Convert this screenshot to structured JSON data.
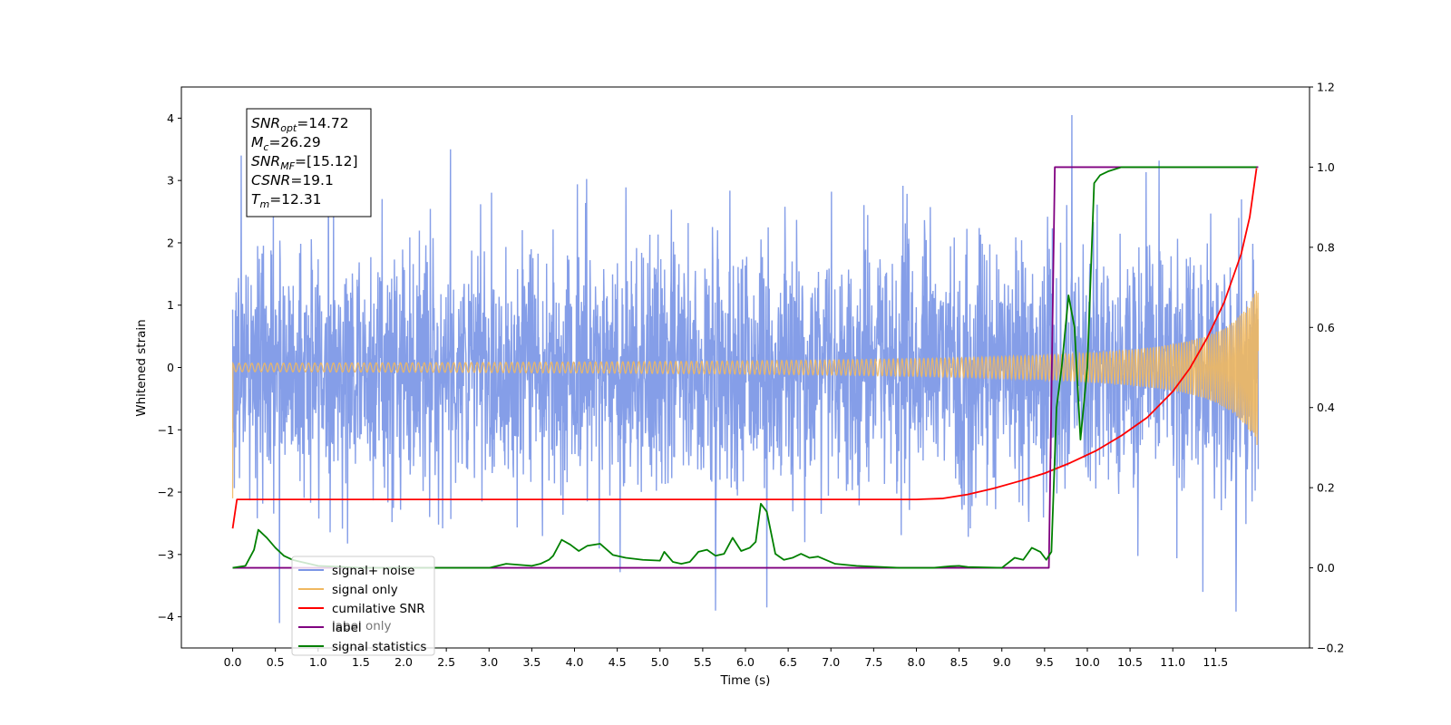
{
  "chart_data": {
    "type": "line",
    "xlabel": "Time (s)",
    "ylabel": "Whitened strain",
    "xlim": [
      -0.6,
      12.6
    ],
    "ylim": [
      -4.5,
      4.5
    ],
    "y2lim": [
      -0.2,
      1.2
    ],
    "x_ticks": [
      0.0,
      0.5,
      1.0,
      1.5,
      2.0,
      2.5,
      3.0,
      3.5,
      4.0,
      4.5,
      5.0,
      5.5,
      6.0,
      6.5,
      7.0,
      7.5,
      8.0,
      8.5,
      9.0,
      9.5,
      10.0,
      10.5,
      11.0,
      11.5
    ],
    "x_tick_labels": [
      "0.0",
      "0.5",
      "1.0",
      "1.5",
      "2.0",
      "2.5",
      "3.0",
      "3.5",
      "4.0",
      "4.5",
      "5.0",
      "5.5",
      "6.0",
      "6.5",
      "7.0",
      "7.5",
      "8.0",
      "8.5",
      "9.0",
      "9.5",
      "10.0",
      "10.5",
      "11.0",
      "11.5"
    ],
    "y_ticks": [
      -4,
      -3,
      -2,
      -1,
      0,
      1,
      2,
      3,
      4
    ],
    "y_tick_labels": [
      "−4",
      "−3",
      "−2",
      "−1",
      "0",
      "1",
      "2",
      "3",
      "4"
    ],
    "y2_ticks": [
      -0.2,
      0.0,
      0.2,
      0.4,
      0.6,
      0.8,
      1.0,
      1.2
    ],
    "y2_tick_labels": [
      "−0.2",
      "0.0",
      "0.2",
      "0.4",
      "0.6",
      "0.8",
      "1.0",
      "1.2"
    ],
    "annotation": {
      "lines": [
        {
          "main": "SNR",
          "sub": "opt",
          "value": "=14.72"
        },
        {
          "main": "M",
          "sub": "c",
          "value": "=26.29"
        },
        {
          "main": "SNR",
          "sub": "MF",
          "value": "=[15.12]"
        },
        {
          "main": "CSNR",
          "sub": "",
          "value": "=19.1"
        },
        {
          "main": "T",
          "sub": "m",
          "value": "=12.31"
        }
      ]
    },
    "legend": {
      "placement": "lower-left",
      "entries": [
        "signal+ noise",
        "signal only",
        "cumilative SNR",
        "label",
        "signal statistics"
      ],
      "hidden_entry": "label only"
    },
    "series": [
      {
        "name": "signal+ noise",
        "axis": "left",
        "color": "#7b96e6",
        "kind": "noise",
        "x_range": [
          0.0,
          12.0
        ],
        "sigma": 1.0,
        "visible_extremes": [
          [
            0.55,
            -4.1
          ],
          [
            9.82,
            4.05
          ],
          [
            5.65,
            -3.9
          ],
          [
            6.25,
            -3.85
          ],
          [
            11.35,
            -3.6
          ],
          [
            2.55,
            3.5
          ],
          [
            0.1,
            3.4
          ]
        ]
      },
      {
        "name": "signal only",
        "axis": "left",
        "color": "#f0b860",
        "kind": "chirp",
        "x_range": [
          0.0,
          12.0
        ],
        "merger_time": 12.31,
        "start_amplitude": 0.02,
        "end_amplitude": 1.35
      },
      {
        "name": "cumilative SNR",
        "axis": "right",
        "color": "#ff0000",
        "x": [
          0.0,
          0.05,
          1.0,
          2.0,
          3.0,
          4.0,
          5.0,
          6.0,
          7.0,
          7.5,
          8.0,
          8.3,
          8.6,
          8.9,
          9.2,
          9.5,
          9.8,
          10.1,
          10.4,
          10.7,
          11.0,
          11.2,
          11.4,
          11.6,
          11.8,
          11.9,
          11.98
        ],
        "y": [
          0.0983,
          0.1707,
          0.1707,
          0.1707,
          0.1707,
          0.1707,
          0.1707,
          0.1707,
          0.1707,
          0.1707,
          0.1707,
          0.173,
          0.183,
          0.198,
          0.216,
          0.236,
          0.262,
          0.292,
          0.33,
          0.375,
          0.44,
          0.498,
          0.573,
          0.662,
          0.783,
          0.875,
          0.997
        ]
      },
      {
        "name": "label",
        "axis": "right",
        "color": "#800080",
        "x": [
          0.0,
          9.55,
          9.62,
          12.0
        ],
        "y": [
          0.0,
          0.0,
          1.0,
          1.0
        ]
      },
      {
        "name": "signal statistics",
        "axis": "right",
        "color": "#008000",
        "x": [
          0.0,
          0.15,
          0.25,
          0.3,
          0.4,
          0.5,
          0.6,
          0.7,
          0.8,
          1.0,
          1.5,
          2.0,
          2.5,
          3.0,
          3.2,
          3.5,
          3.6,
          3.7,
          3.75,
          3.85,
          3.95,
          4.05,
          4.15,
          4.3,
          4.45,
          4.6,
          4.8,
          5.0,
          5.05,
          5.15,
          5.25,
          5.35,
          5.45,
          5.55,
          5.65,
          5.75,
          5.85,
          5.95,
          6.05,
          6.12,
          6.18,
          6.25,
          6.35,
          6.45,
          6.55,
          6.65,
          6.75,
          6.85,
          7.05,
          7.3,
          7.5,
          7.8,
          8.0,
          8.2,
          8.4,
          8.5,
          8.6,
          9.0,
          9.15,
          9.25,
          9.35,
          9.45,
          9.52,
          9.58,
          9.64,
          9.7,
          9.78,
          9.85,
          9.92,
          10.0,
          10.08,
          10.15,
          10.25,
          10.4,
          10.6,
          11.0,
          11.5,
          11.98
        ],
        "y": [
          0.0,
          0.005,
          0.045,
          0.095,
          0.075,
          0.05,
          0.03,
          0.02,
          0.015,
          0.005,
          0.0,
          0.0,
          0.0,
          0.0,
          0.01,
          0.005,
          0.01,
          0.02,
          0.03,
          0.07,
          0.058,
          0.042,
          0.055,
          0.06,
          0.032,
          0.025,
          0.02,
          0.018,
          0.04,
          0.015,
          0.01,
          0.015,
          0.04,
          0.045,
          0.03,
          0.035,
          0.075,
          0.042,
          0.05,
          0.065,
          0.16,
          0.14,
          0.035,
          0.02,
          0.025,
          0.035,
          0.025,
          0.028,
          0.01,
          0.005,
          0.003,
          0.0,
          0.0,
          0.0,
          0.004,
          0.005,
          0.002,
          0.0,
          0.025,
          0.02,
          0.05,
          0.04,
          0.02,
          0.04,
          0.4,
          0.5,
          0.68,
          0.6,
          0.32,
          0.5,
          0.96,
          0.98,
          0.99,
          1.0,
          1.0,
          1.0,
          1.0,
          1.0
        ]
      }
    ]
  }
}
